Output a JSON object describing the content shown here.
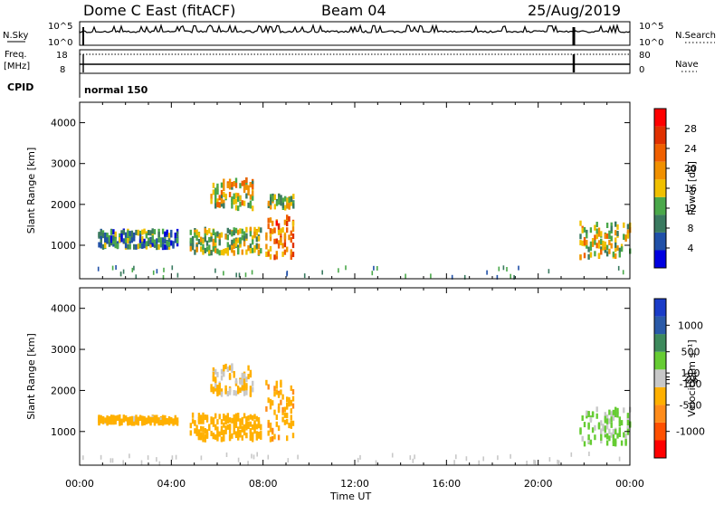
{
  "header": {
    "station": "Dome C East (fitACF)",
    "beam": "Beam 04",
    "date": "25/Aug/2019"
  },
  "strip_panels": {
    "nsky": {
      "label": "N.Sky",
      "ticks": [
        "10^5",
        "10^0"
      ]
    },
    "nsearch": {
      "label": "N.Search",
      "ticks": [
        "10^5",
        "10^0"
      ]
    },
    "freq": {
      "label_top": "Freq.",
      "label_unit": "[MHz]",
      "ticks": [
        "18",
        "8"
      ]
    },
    "nave": {
      "label": "Nave",
      "ticks": [
        "80",
        "0"
      ]
    },
    "cpid": {
      "label": "CPID",
      "value": "normal 150"
    }
  },
  "colors": {
    "power_scale": [
      "#0000e0",
      "#2050a8",
      "#3a7a60",
      "#4aa84a",
      "#f0c000",
      "#f09000",
      "#f06000",
      "#e03000",
      "#ff0000"
    ],
    "velocity_scale": [
      "#ff0000",
      "#ff5000",
      "#ff8c1a",
      "#ffb000",
      "#c8c8c8",
      "#66cc33",
      "#3d8a5c",
      "#2a5aa8",
      "#1a3cc8"
    ]
  },
  "chart_data": [
    {
      "type": "heatmap",
      "name": "power",
      "ylabel": "Slant Range [km]",
      "xlabel": "Time UT",
      "x_ticks": [
        "00:00",
        "04:00",
        "08:00",
        "12:00",
        "16:00",
        "20:00",
        "00:00"
      ],
      "x_range_hours": [
        0,
        24
      ],
      "y_ticks": [
        1000,
        2000,
        3000,
        4000
      ],
      "y_range_km": [
        180,
        4500
      ],
      "colorbar": {
        "label": "Power [dB]",
        "ticks": [
          4,
          8,
          12,
          16,
          20,
          24,
          28
        ],
        "range": [
          0,
          32
        ]
      },
      "echo_regions": [
        {
          "t_start": 0.8,
          "t_end": 4.3,
          "r_low": 950,
          "r_high": 1350,
          "value_mid": 9
        },
        {
          "t_start": 4.8,
          "t_end": 7.9,
          "r_low": 800,
          "r_high": 1400,
          "value_mid": 14
        },
        {
          "t_start": 5.7,
          "t_end": 7.5,
          "r_low": 1900,
          "r_high": 2600,
          "value_mid": 16
        },
        {
          "t_start": 8.1,
          "t_end": 9.3,
          "r_low": 700,
          "r_high": 1700,
          "value_mid": 22
        },
        {
          "t_start": 8.2,
          "t_end": 9.3,
          "r_low": 1900,
          "r_high": 2200,
          "value_mid": 14
        },
        {
          "t_start": 21.8,
          "t_end": 24.0,
          "r_low": 700,
          "r_high": 1550,
          "value_mid": 16
        }
      ]
    },
    {
      "type": "heatmap",
      "name": "velocity",
      "ylabel": "Slant Range [km]",
      "xlabel": "Time UT",
      "x_ticks": [
        "00:00",
        "04:00",
        "08:00",
        "12:00",
        "16:00",
        "20:00",
        "00:00"
      ],
      "x_range_hours": [
        0,
        24
      ],
      "y_ticks": [
        1000,
        2000,
        3000,
        4000
      ],
      "y_range_km": [
        180,
        4500
      ],
      "colorbar": {
        "label": "Velocity [m s⁻¹]",
        "ticks": [
          1000,
          500,
          100,
          25,
          -25,
          -100,
          -500,
          -1000
        ],
        "range": [
          -1500,
          1500
        ]
      },
      "echo_regions": [
        {
          "t_start": 0.8,
          "t_end": 4.3,
          "r_low": 1200,
          "r_high": 1350,
          "value": -300
        },
        {
          "t_start": 4.8,
          "t_end": 7.9,
          "r_low": 800,
          "r_high": 1400,
          "value": -350
        },
        {
          "t_start": 5.7,
          "t_end": 7.5,
          "r_low": 1900,
          "r_high": 2600,
          "value": -200
        },
        {
          "t_start": 8.1,
          "t_end": 9.3,
          "r_low": 800,
          "r_high": 2200,
          "value": -400
        },
        {
          "t_start": 21.8,
          "t_end": 24.0,
          "r_low": 700,
          "r_high": 1550,
          "value": 200
        }
      ]
    }
  ]
}
